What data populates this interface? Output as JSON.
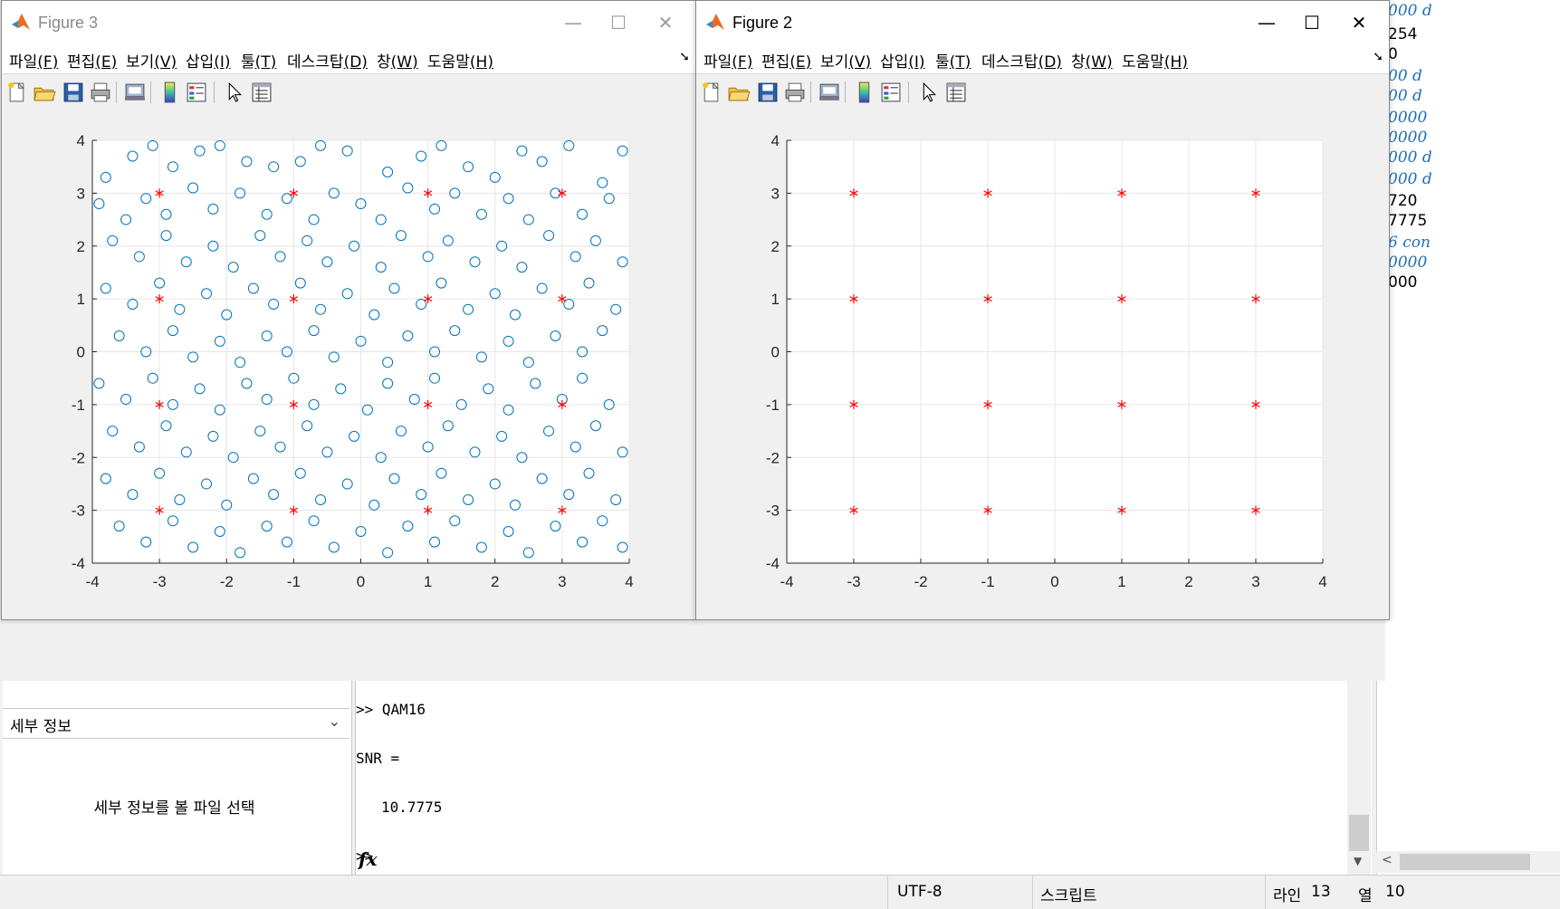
{
  "workspace_right": {
    "lines": [
      {
        "text": "000 d",
        "style": "italic"
      },
      {
        "text": "254",
        "style": "plain"
      },
      {
        "text": "0",
        "style": "plain"
      },
      {
        "text": "00 d",
        "style": "italic"
      },
      {
        "text": "00 d",
        "style": "italic"
      },
      {
        "text": "0000",
        "style": "italic"
      },
      {
        "text": "0000",
        "style": "italic"
      },
      {
        "text": "000 d",
        "style": "italic"
      },
      {
        "text": "000 d",
        "style": "italic"
      },
      {
        "text": "720",
        "style": "plain"
      },
      {
        "text": "7775",
        "style": "plain"
      },
      {
        "text": "6 con",
        "style": "italic"
      },
      {
        "text": "0000",
        "style": "italic"
      },
      {
        "text": "000",
        "style": "plain"
      }
    ]
  },
  "details": {
    "header": "세부 정보",
    "message": "세부 정보를 볼 파일 선택"
  },
  "command_window": {
    "line1": ">> QAM16",
    "line2": "SNR =",
    "line3": "10.7775",
    "prompt": ">>",
    "fx": "fx"
  },
  "statusbar": {
    "encoding": "UTF-8",
    "mode": "스크립트",
    "line_label": "라인",
    "line_value": "13",
    "col_label": "열",
    "col_value": "10"
  },
  "menu": {
    "items": [
      {
        "label": "파일",
        "key": "(F)"
      },
      {
        "label": "편집",
        "key": "(E)"
      },
      {
        "label": "보기",
        "key": "(V)"
      },
      {
        "label": "삽입",
        "key": "(I)"
      },
      {
        "label": "툴",
        "key": "(T)"
      },
      {
        "label": "데스크탑",
        "key": "(D)"
      },
      {
        "label": "창",
        "key": "(W)"
      },
      {
        "label": "도움말",
        "key": "(H)"
      }
    ]
  },
  "toolbar_icons": [
    "new-figure-icon",
    "open-file-icon",
    "save-icon",
    "print-icon",
    "link-icon",
    "colorbar-icon",
    "legend-icon",
    "pointer-icon",
    "property-editor-icon"
  ],
  "figure3": {
    "title": "Figure 3",
    "active": false
  },
  "figure2": {
    "title": "Figure 2",
    "active": true
  },
  "colors": {
    "received_symbols": "#0072bd",
    "reference_symbols": "#ff0000",
    "grid": "#e6e6e6"
  },
  "chart_data": [
    {
      "type": "scatter",
      "figure": "Figure 3",
      "title": "",
      "xlabel": "",
      "ylabel": "",
      "xlim": [
        -4,
        4
      ],
      "ylim": [
        -4,
        4
      ],
      "xticks": [
        -4,
        -3,
        -2,
        -1,
        0,
        1,
        2,
        3,
        4
      ],
      "yticks": [
        -4,
        -3,
        -2,
        -1,
        0,
        1,
        2,
        3,
        4
      ],
      "grid": true,
      "series": [
        {
          "marker": "o",
          "color": "#0072bd",
          "note_count": "approx. 1000 noisy received points spread uniformly over [-4,4]x[-4,4]",
          "points": [
            [
              -3.8,
              3.3
            ],
            [
              -3.4,
              3.7
            ],
            [
              -3.1,
              3.9
            ],
            [
              -2.8,
              3.5
            ],
            [
              -2.4,
              3.8
            ],
            [
              -2.1,
              3.9
            ],
            [
              -1.7,
              3.6
            ],
            [
              -1.3,
              3.5
            ],
            [
              -0.9,
              3.6
            ],
            [
              -0.6,
              3.9
            ],
            [
              -0.2,
              3.8
            ],
            [
              0.4,
              3.4
            ],
            [
              0.9,
              3.7
            ],
            [
              1.2,
              3.9
            ],
            [
              1.6,
              3.5
            ],
            [
              2.0,
              3.3
            ],
            [
              2.4,
              3.8
            ],
            [
              2.7,
              3.6
            ],
            [
              3.1,
              3.9
            ],
            [
              3.6,
              3.2
            ],
            [
              3.9,
              3.8
            ],
            [
              -3.9,
              2.8
            ],
            [
              -3.5,
              2.5
            ],
            [
              -3.2,
              2.9
            ],
            [
              -2.9,
              2.6
            ],
            [
              -2.5,
              3.1
            ],
            [
              -2.2,
              2.7
            ],
            [
              -1.8,
              3.0
            ],
            [
              -1.4,
              2.6
            ],
            [
              -1.1,
              2.9
            ],
            [
              -0.7,
              2.5
            ],
            [
              -0.4,
              3.0
            ],
            [
              0.0,
              2.8
            ],
            [
              0.3,
              2.5
            ],
            [
              0.7,
              3.1
            ],
            [
              1.1,
              2.7
            ],
            [
              1.4,
              3.0
            ],
            [
              1.8,
              2.6
            ],
            [
              2.2,
              2.9
            ],
            [
              2.5,
              2.5
            ],
            [
              2.9,
              3.0
            ],
            [
              3.3,
              2.6
            ],
            [
              3.7,
              2.9
            ],
            [
              -3.7,
              2.1
            ],
            [
              -3.3,
              1.8
            ],
            [
              -2.9,
              2.2
            ],
            [
              -2.6,
              1.7
            ],
            [
              -2.2,
              2.0
            ],
            [
              -1.9,
              1.6
            ],
            [
              -1.5,
              2.2
            ],
            [
              -1.2,
              1.8
            ],
            [
              -0.8,
              2.1
            ],
            [
              -0.5,
              1.7
            ],
            [
              -0.1,
              2.0
            ],
            [
              0.3,
              1.6
            ],
            [
              0.6,
              2.2
            ],
            [
              1.0,
              1.8
            ],
            [
              1.3,
              2.1
            ],
            [
              1.7,
              1.7
            ],
            [
              2.1,
              2.0
            ],
            [
              2.4,
              1.6
            ],
            [
              2.8,
              2.2
            ],
            [
              3.2,
              1.8
            ],
            [
              3.5,
              2.1
            ],
            [
              3.9,
              1.7
            ],
            [
              -3.8,
              1.2
            ],
            [
              -3.4,
              0.9
            ],
            [
              -3.0,
              1.3
            ],
            [
              -2.7,
              0.8
            ],
            [
              -2.3,
              1.1
            ],
            [
              -2.0,
              0.7
            ],
            [
              -1.6,
              1.2
            ],
            [
              -1.3,
              0.9
            ],
            [
              -0.9,
              1.3
            ],
            [
              -0.6,
              0.8
            ],
            [
              -0.2,
              1.1
            ],
            [
              0.2,
              0.7
            ],
            [
              0.5,
              1.2
            ],
            [
              0.9,
              0.9
            ],
            [
              1.2,
              1.3
            ],
            [
              1.6,
              0.8
            ],
            [
              2.0,
              1.1
            ],
            [
              2.3,
              0.7
            ],
            [
              2.7,
              1.2
            ],
            [
              3.1,
              0.9
            ],
            [
              3.4,
              1.3
            ],
            [
              3.8,
              0.8
            ],
            [
              -3.6,
              0.3
            ],
            [
              -3.2,
              0.0
            ],
            [
              -2.8,
              0.4
            ],
            [
              -2.5,
              -0.1
            ],
            [
              -2.1,
              0.2
            ],
            [
              -1.8,
              -0.2
            ],
            [
              -1.4,
              0.3
            ],
            [
              -1.1,
              0.0
            ],
            [
              -0.7,
              0.4
            ],
            [
              -0.4,
              -0.1
            ],
            [
              0.0,
              0.2
            ],
            [
              0.4,
              -0.2
            ],
            [
              0.7,
              0.3
            ],
            [
              1.1,
              0.0
            ],
            [
              1.4,
              0.4
            ],
            [
              1.8,
              -0.1
            ],
            [
              2.2,
              0.2
            ],
            [
              2.5,
              -0.2
            ],
            [
              2.9,
              0.3
            ],
            [
              3.3,
              0.0
            ],
            [
              3.6,
              0.4
            ],
            [
              -3.9,
              -0.6
            ],
            [
              -3.5,
              -0.9
            ],
            [
              -3.1,
              -0.5
            ],
            [
              -2.8,
              -1.0
            ],
            [
              -2.4,
              -0.7
            ],
            [
              -2.1,
              -1.1
            ],
            [
              -1.7,
              -0.6
            ],
            [
              -1.4,
              -0.9
            ],
            [
              -1.0,
              -0.5
            ],
            [
              -0.7,
              -1.0
            ],
            [
              -0.3,
              -0.7
            ],
            [
              0.1,
              -1.1
            ],
            [
              0.4,
              -0.6
            ],
            [
              0.8,
              -0.9
            ],
            [
              1.1,
              -0.5
            ],
            [
              1.5,
              -1.0
            ],
            [
              1.9,
              -0.7
            ],
            [
              2.2,
              -1.1
            ],
            [
              2.6,
              -0.6
            ],
            [
              3.0,
              -0.9
            ],
            [
              3.3,
              -0.5
            ],
            [
              3.7,
              -1.0
            ],
            [
              -3.7,
              -1.5
            ],
            [
              -3.3,
              -1.8
            ],
            [
              -2.9,
              -1.4
            ],
            [
              -2.6,
              -1.9
            ],
            [
              -2.2,
              -1.6
            ],
            [
              -1.9,
              -2.0
            ],
            [
              -1.5,
              -1.5
            ],
            [
              -1.2,
              -1.8
            ],
            [
              -0.8,
              -1.4
            ],
            [
              -0.5,
              -1.9
            ],
            [
              -0.1,
              -1.6
            ],
            [
              0.3,
              -2.0
            ],
            [
              0.6,
              -1.5
            ],
            [
              1.0,
              -1.8
            ],
            [
              1.3,
              -1.4
            ],
            [
              1.7,
              -1.9
            ],
            [
              2.1,
              -1.6
            ],
            [
              2.4,
              -2.0
            ],
            [
              2.8,
              -1.5
            ],
            [
              3.2,
              -1.8
            ],
            [
              3.5,
              -1.4
            ],
            [
              3.9,
              -1.9
            ],
            [
              -3.8,
              -2.4
            ],
            [
              -3.4,
              -2.7
            ],
            [
              -3.0,
              -2.3
            ],
            [
              -2.7,
              -2.8
            ],
            [
              -2.3,
              -2.5
            ],
            [
              -2.0,
              -2.9
            ],
            [
              -1.6,
              -2.4
            ],
            [
              -1.3,
              -2.7
            ],
            [
              -0.9,
              -2.3
            ],
            [
              -0.6,
              -2.8
            ],
            [
              -0.2,
              -2.5
            ],
            [
              0.2,
              -2.9
            ],
            [
              0.5,
              -2.4
            ],
            [
              0.9,
              -2.7
            ],
            [
              1.2,
              -2.3
            ],
            [
              1.6,
              -2.8
            ],
            [
              2.0,
              -2.5
            ],
            [
              2.3,
              -2.9
            ],
            [
              2.7,
              -2.4
            ],
            [
              3.1,
              -2.7
            ],
            [
              3.4,
              -2.3
            ],
            [
              3.8,
              -2.8
            ],
            [
              -3.6,
              -3.3
            ],
            [
              -3.2,
              -3.6
            ],
            [
              -2.8,
              -3.2
            ],
            [
              -2.5,
              -3.7
            ],
            [
              -2.1,
              -3.4
            ],
            [
              -1.8,
              -3.8
            ],
            [
              -1.4,
              -3.3
            ],
            [
              -1.1,
              -3.6
            ],
            [
              -0.7,
              -3.2
            ],
            [
              -0.4,
              -3.7
            ],
            [
              0.0,
              -3.4
            ],
            [
              0.4,
              -3.8
            ],
            [
              0.7,
              -3.3
            ],
            [
              1.1,
              -3.6
            ],
            [
              1.4,
              -3.2
            ],
            [
              1.8,
              -3.7
            ],
            [
              2.2,
              -3.4
            ],
            [
              2.5,
              -3.8
            ],
            [
              2.9,
              -3.3
            ],
            [
              3.3,
              -3.6
            ],
            [
              3.6,
              -3.2
            ],
            [
              3.9,
              -3.7
            ]
          ]
        },
        {
          "marker": "*",
          "color": "#ff0000",
          "points": [
            [
              -3,
              3
            ],
            [
              -1,
              3
            ],
            [
              1,
              3
            ],
            [
              3,
              3
            ],
            [
              -3,
              1
            ],
            [
              -1,
              1
            ],
            [
              1,
              1
            ],
            [
              3,
              1
            ],
            [
              -3,
              -1
            ],
            [
              -1,
              -1
            ],
            [
              1,
              -1
            ],
            [
              3,
              -1
            ],
            [
              -3,
              -3
            ],
            [
              -1,
              -3
            ],
            [
              1,
              -3
            ],
            [
              3,
              -3
            ]
          ]
        }
      ]
    },
    {
      "type": "scatter",
      "figure": "Figure 2",
      "title": "",
      "xlabel": "",
      "ylabel": "",
      "xlim": [
        -4,
        4
      ],
      "ylim": [
        -4,
        4
      ],
      "xticks": [
        -4,
        -3,
        -2,
        -1,
        0,
        1,
        2,
        3,
        4
      ],
      "yticks": [
        -4,
        -3,
        -2,
        -1,
        0,
        1,
        2,
        3,
        4
      ],
      "grid": true,
      "series": [
        {
          "marker": "*",
          "color": "#ff0000",
          "points": [
            [
              -3,
              3
            ],
            [
              -1,
              3
            ],
            [
              1,
              3
            ],
            [
              3,
              3
            ],
            [
              -3,
              1
            ],
            [
              -1,
              1
            ],
            [
              1,
              1
            ],
            [
              3,
              1
            ],
            [
              -3,
              -1
            ],
            [
              -1,
              -1
            ],
            [
              1,
              -1
            ],
            [
              3,
              -1
            ],
            [
              -3,
              -3
            ],
            [
              -1,
              -3
            ],
            [
              1,
              -3
            ],
            [
              3,
              -3
            ]
          ]
        }
      ]
    }
  ]
}
